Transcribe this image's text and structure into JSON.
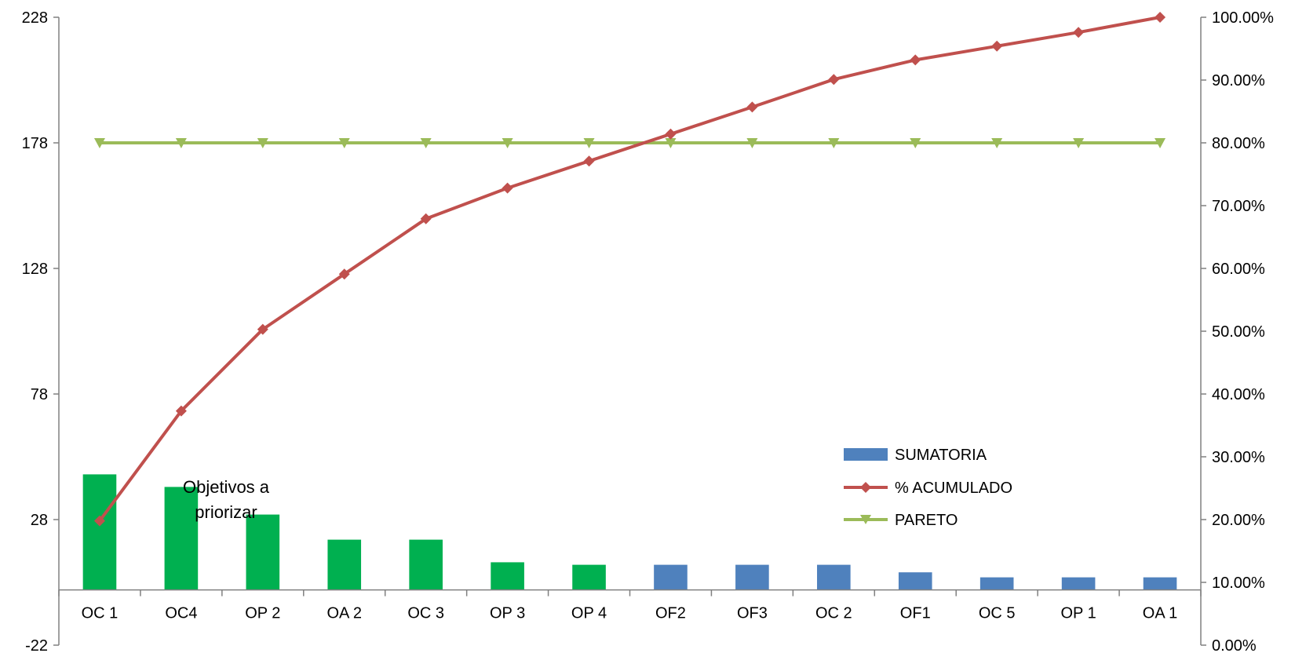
{
  "chart_data": {
    "type": "bar",
    "categories": [
      "OC 1",
      "OC4",
      "OP 2",
      "OA 2",
      "OC 3",
      "OP 3",
      "OP 4",
      "OF2",
      "OF3",
      "OC 2",
      "OF1",
      "OC 5",
      "OP 1",
      "OA 1"
    ],
    "series": [
      {
        "name": "SUMATORIA",
        "type": "bar",
        "axis": "left",
        "values": [
          46,
          41,
          30,
          20,
          20,
          11,
          10,
          10,
          10,
          10,
          7,
          5,
          5,
          5
        ],
        "bar_colors": [
          "#00B050",
          "#00B050",
          "#00B050",
          "#00B050",
          "#00B050",
          "#00B050",
          "#00B050",
          "#4F81BD",
          "#4F81BD",
          "#4F81BD",
          "#4F81BD",
          "#4F81BD",
          "#4F81BD",
          "#4F81BD"
        ],
        "legend_color": "#4F81BD"
      },
      {
        "name": "% ACUMULADO",
        "type": "line",
        "axis": "right",
        "marker": "diamond",
        "color": "#C0504D",
        "values": [
          19.8,
          37.3,
          50.3,
          59.1,
          67.9,
          72.8,
          77.1,
          81.4,
          85.7,
          90.1,
          93.2,
          95.4,
          97.6,
          100
        ]
      },
      {
        "name": "PARETO",
        "type": "line",
        "axis": "right",
        "marker": "triangle-down",
        "color": "#9BBB59",
        "values": [
          80,
          80,
          80,
          80,
          80,
          80,
          80,
          80,
          80,
          80,
          80,
          80,
          80,
          80
        ]
      }
    ],
    "y_left": {
      "min": -22,
      "max": 228,
      "ticks": [
        "-22",
        "28",
        "78",
        "128",
        "178",
        "228"
      ]
    },
    "y_right": {
      "min": 0,
      "max": 100,
      "ticks": [
        "0.00%",
        "10.00%",
        "20.00%",
        "30.00%",
        "40.00%",
        "50.00%",
        "60.00%",
        "70.00%",
        "80.00%",
        "90.00%",
        "100.00%"
      ]
    },
    "annotation": {
      "line1": "Objetivos a",
      "line2": "priorizar"
    },
    "legend_position": "lower-right",
    "grid": false
  }
}
